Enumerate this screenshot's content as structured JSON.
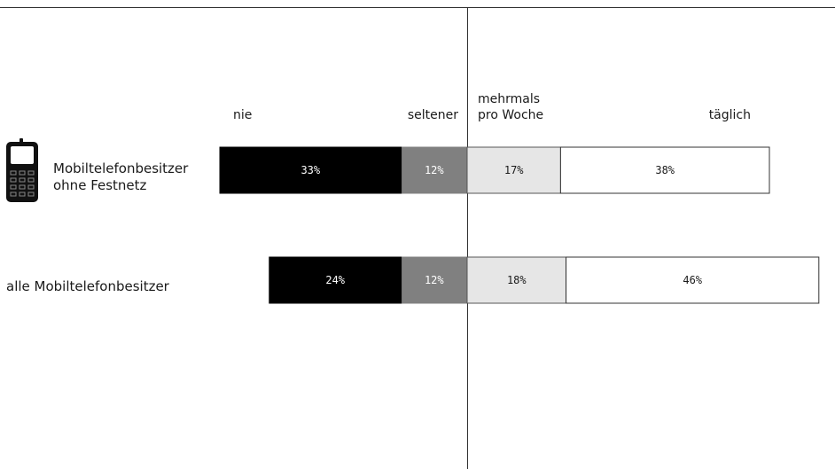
{
  "chart_data": {
    "type": "bar",
    "orientation": "horizontal",
    "stacked": true,
    "diverging": true,
    "categories": [
      "Mobiltelefonbesitzer ohne Festnetz",
      "alle Mobiltelefonbesitzer"
    ],
    "column_headers": [
      "nie",
      "seltener",
      "mehrmals pro Woche",
      "täglich"
    ],
    "series": [
      {
        "values": [
          33,
          24
        ],
        "labels": [
          "33%",
          "24%"
        ],
        "color": "#000000",
        "text_color": "#ffffff"
      },
      {
        "values": [
          12,
          12
        ],
        "labels": [
          "12%",
          "12%"
        ],
        "color": "#808080",
        "text_color": "#ffffff"
      },
      {
        "values": [
          17,
          18
        ],
        "labels": [
          "17%",
          "18%"
        ],
        "color": "#e6e6e6",
        "text_color": "#1a1a1a"
      },
      {
        "values": [
          38,
          46
        ],
        "labels": [
          "38%",
          "46%"
        ],
        "color": "#ffffff",
        "text_color": "#1a1a1a"
      }
    ],
    "unit": "%",
    "grid": false,
    "row_icons": [
      "mobile-phone-icon",
      ""
    ]
  }
}
